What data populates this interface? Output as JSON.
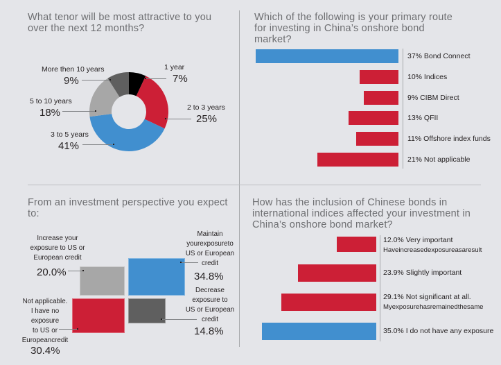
{
  "chart_data": [
    {
      "type": "pie",
      "title": "What tenor will be most attractive to you over the next 12 months?",
      "categories": [
        "1 year",
        "2 to 3 years",
        "3 to 5 years",
        "5 to 10 years",
        "More then 10 years"
      ],
      "values": [
        7,
        25,
        41,
        18,
        9
      ],
      "value_labels": [
        "7%",
        "25%",
        "41%",
        "18%",
        "9%"
      ],
      "colors": [
        "#000000",
        "#cc1f36",
        "#418fcf",
        "#a7a7a7",
        "#5f5f5f"
      ],
      "donut": true
    },
    {
      "type": "bar",
      "orientation": "horizontal",
      "title": "Which of the following is your primary route for investing in China’s onshore bond market?",
      "categories": [
        "Bond Connect",
        "Indices",
        "CIBM Direct",
        "QFII",
        "Offshore index funds",
        "Not applicable"
      ],
      "values": [
        37,
        10,
        9,
        13,
        11,
        21
      ],
      "labels": [
        "37% Bond Connect",
        "10% Indices",
        "9% CIBM Direct",
        "13% QFII",
        "11% Offshore index funds",
        "21% Not applicable"
      ],
      "colors": [
        "#418fcf",
        "#cc1f36",
        "#cc1f36",
        "#cc1f36",
        "#cc1f36",
        "#cc1f36"
      ],
      "xlim": [
        0,
        37
      ]
    },
    {
      "type": "area",
      "subtype": "block",
      "title": "From an investment perspective you expect to:",
      "categories": [
        "Increase your exposure to US or European credit",
        "Maintain your exposure to US or European credit",
        "Not applicable. I have no exposure to US or European credit",
        "Decrease exposure to US or European credit"
      ],
      "values": [
        20.0,
        34.8,
        30.4,
        14.8
      ],
      "value_labels": [
        "20.0%",
        "34.8%",
        "30.4%",
        "14.8%"
      ],
      "label_lines": [
        [
          "Increase your",
          "exposure to US or",
          "European credit"
        ],
        [
          "Maintain",
          "yourexposureto",
          "US or European",
          "credit"
        ],
        [
          "Not applicable.",
          "I have no",
          "exposure",
          "to US or",
          "Europeancredit"
        ],
        [
          "Decrease",
          "exposure to",
          "US or European",
          "credit"
        ]
      ],
      "colors": [
        "#a7a7a7",
        "#418fcf",
        "#cc1f36",
        "#5f5f5f"
      ]
    },
    {
      "type": "bar",
      "orientation": "horizontal",
      "title": "How has the inclusion of Chinese bonds in international indices affected your investment in China’s onshore bond market?",
      "categories": [
        "Very important Have increased exposure as a result",
        "Slightly important",
        "Not significant at all. My exposure has remained the same",
        "I do not have any exposure"
      ],
      "values": [
        12.0,
        23.9,
        29.1,
        35.0
      ],
      "label_lines": [
        [
          "12.0%  Very important",
          "Haveincreasedexposureasaresult"
        ],
        [
          "23.9%  Slightly important"
        ],
        [
          "29.1%  Not significant at all.",
          "Myexposurehasremainedthesame"
        ],
        [
          "35.0% I do not have any exposure"
        ]
      ],
      "colors": [
        "#cc1f36",
        "#cc1f36",
        "#cc1f36",
        "#418fcf"
      ],
      "xlim": [
        0,
        35
      ]
    }
  ]
}
